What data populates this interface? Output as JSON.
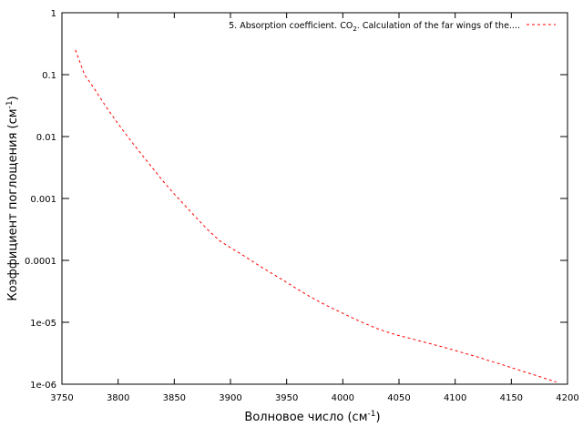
{
  "chart_data": {
    "type": "line",
    "title": "",
    "xlabel": "Волновое число (см",
    "xlabel_sup": "-1",
    "xlabel_end": ")",
    "ylabel": "Коэффициент поглощения (см",
    "ylabel_sup": "-1",
    "ylabel_end": ")",
    "xlim": [
      3750,
      4200
    ],
    "ylim": [
      1e-06,
      1
    ],
    "yscale": "log",
    "grid": false,
    "legend_position": "top-right",
    "x_ticks": [
      3750,
      3800,
      3850,
      3900,
      3950,
      4000,
      4050,
      4100,
      4150,
      4200
    ],
    "x_tick_labels": [
      "3750",
      "3800",
      "3850",
      "3900",
      "3950",
      "4000",
      "4050",
      "4100",
      "4150",
      "4200"
    ],
    "y_ticks": [
      1e-06,
      1e-05,
      0.0001,
      0.001,
      0.01,
      0.1,
      1
    ],
    "y_tick_labels": [
      "1e-06",
      "1e-05",
      "0.0001",
      "0.001",
      "0.01",
      "0.1",
      "1"
    ],
    "series": [
      {
        "name": "5. Absorption coefficient. CO2. Calculation of the far wings of the....",
        "legend_parts": [
          "5. Absorption coefficient. CO",
          "2",
          ". Calculation of the far wings of the...."
        ],
        "color": "#ff0000",
        "line_style": "dashed",
        "x": [
          3762,
          3766,
          3770,
          3775,
          3780,
          3790,
          3800,
          3810,
          3820,
          3830,
          3840,
          3850,
          3860,
          3870,
          3880,
          3890,
          3900,
          3910,
          3920,
          3930,
          3940,
          3950,
          3960,
          3970,
          3980,
          3990,
          4000,
          4010,
          4020,
          4030,
          4040,
          4050,
          4060,
          4070,
          4080,
          4090,
          4100,
          4110,
          4120,
          4130,
          4140,
          4150,
          4160,
          4170,
          4180,
          4190
        ],
        "y": [
          0.25,
          0.16,
          0.1,
          0.075,
          0.055,
          0.029,
          0.016,
          0.0092,
          0.0054,
          0.0032,
          0.0019,
          0.00118,
          0.00075,
          0.00048,
          0.00031,
          0.00021,
          0.00016,
          0.000125,
          9.5e-05,
          7.3e-05,
          5.7e-05,
          4.4e-05,
          3.4e-05,
          2.65e-05,
          2.1e-05,
          1.7e-05,
          1.4e-05,
          1.14e-05,
          9.5e-06,
          8e-06,
          6.9e-06,
          6.1e-06,
          5.5e-06,
          4.9e-06,
          4.4e-06,
          3.95e-06,
          3.5e-06,
          3.1e-06,
          2.75e-06,
          2.4e-06,
          2.12e-06,
          1.85e-06,
          1.62e-06,
          1.42e-06,
          1.24e-06,
          1.08e-06
        ]
      }
    ]
  }
}
